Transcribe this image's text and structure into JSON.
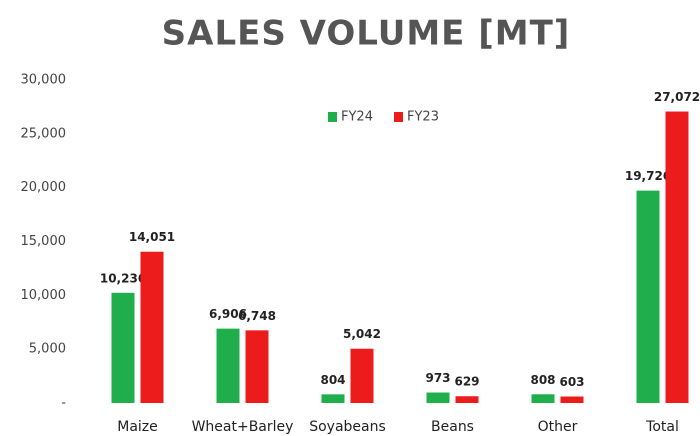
{
  "chart_data": {
    "type": "bar",
    "title": "SALES VOLUME [MT]",
    "categories": [
      "Maize",
      "Wheat+Barley",
      "Soyabeans",
      "Beans",
      "Other",
      "Total"
    ],
    "series": [
      {
        "name": "FY24",
        "color": "#1fae4b",
        "values": [
          10236,
          6906,
          804,
          973,
          808,
          19726
        ],
        "value_labels": [
          "10,236",
          "6,906",
          "804",
          "973",
          "808",
          "19,726"
        ]
      },
      {
        "name": "FY23",
        "color": "#ec1c1c",
        "values": [
          14051,
          6748,
          5042,
          629,
          603,
          27072
        ],
        "value_labels": [
          "14,051",
          "6,748",
          "5,042",
          "629",
          "603",
          "27,072"
        ]
      }
    ],
    "ylim": [
      0,
      30000
    ],
    "yticks": [
      {
        "value": 0,
        "label": "-"
      },
      {
        "value": 5000,
        "label": "5,000"
      },
      {
        "value": 10000,
        "label": "10,000"
      },
      {
        "value": 15000,
        "label": "15,000"
      },
      {
        "value": 20000,
        "label": "20,000"
      },
      {
        "value": 25000,
        "label": "25,000"
      },
      {
        "value": 30000,
        "label": "30,000"
      }
    ],
    "grid": false,
    "legend": "top"
  }
}
